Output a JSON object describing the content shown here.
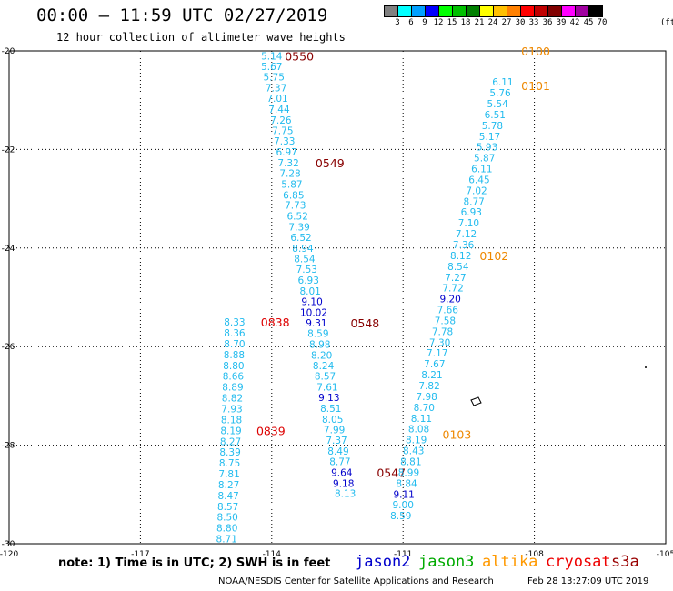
{
  "header": {
    "title": "00:00 – 11:59 UTC 02/27/2019",
    "subtitle": "12 hour collection of altimeter wave heights"
  },
  "legend": {
    "unit": "(ft)",
    "items": [
      {
        "label": "3",
        "color": "#808080"
      },
      {
        "label": "6",
        "color": "#00ffff"
      },
      {
        "label": "9",
        "color": "#00a0ff"
      },
      {
        "label": "12",
        "color": "#0000ff"
      },
      {
        "label": "15",
        "color": "#00ff00"
      },
      {
        "label": "18",
        "color": "#00c000"
      },
      {
        "label": "21",
        "color": "#008000"
      },
      {
        "label": "24",
        "color": "#ffff00"
      },
      {
        "label": "27",
        "color": "#ffc000"
      },
      {
        "label": "30",
        "color": "#ff8000"
      },
      {
        "label": "33",
        "color": "#ff0000"
      },
      {
        "label": "36",
        "color": "#c00000"
      },
      {
        "label": "39",
        "color": "#800000"
      },
      {
        "label": "42",
        "color": "#ff00ff"
      },
      {
        "label": "45",
        "color": "#a000a0"
      },
      {
        "label": "70",
        "color": "#000000"
      }
    ]
  },
  "map": {
    "lon_range": [
      -120,
      -105
    ],
    "lat_range": [
      -30,
      -20
    ],
    "x_ticks": [
      {
        "value": -120,
        "label": "-120"
      },
      {
        "value": -117,
        "label": "-117"
      },
      {
        "value": -114,
        "label": "-114"
      },
      {
        "value": -111,
        "label": "-111"
      },
      {
        "value": -108,
        "label": "-108"
      },
      {
        "value": -105,
        "label": "-105"
      }
    ],
    "y_ticks": [
      {
        "value": -20,
        "label": "-20"
      },
      {
        "value": -22,
        "label": "-22"
      },
      {
        "value": -24,
        "label": "-24"
      },
      {
        "value": -26,
        "label": "-26"
      },
      {
        "value": -28,
        "label": "-28"
      },
      {
        "value": -30,
        "label": "-30"
      }
    ],
    "grid_lons": [
      -117,
      -114,
      -111,
      -108
    ],
    "grid_lats": [
      -22,
      -24,
      -26,
      -28
    ],
    "colors": {
      "cyan": "#22bbee",
      "blue": "#0000cc",
      "red": "#dd0000",
      "darkred": "#880000",
      "orange": "#ee8800"
    },
    "tracks": [
      {
        "id": "track-0550",
        "satellite": "cryosat",
        "time_label": {
          "text": "0550",
          "lon": -113.7,
          "lat": -20.1,
          "color": "darkred"
        },
        "points": [
          {
            "lon": -114.0,
            "lat": -20.1,
            "v": "5.14",
            "c": "cyan"
          },
          {
            "lon": -114.0,
            "lat": -20.31,
            "v": "5.67",
            "c": "cyan"
          },
          {
            "lon": -113.95,
            "lat": -20.53,
            "v": "5.75",
            "c": "cyan"
          },
          {
            "lon": -113.9,
            "lat": -20.75,
            "v": "7.37",
            "c": "cyan"
          },
          {
            "lon": -113.87,
            "lat": -20.96,
            "v": "7.01",
            "c": "cyan"
          },
          {
            "lon": -113.83,
            "lat": -21.18,
            "v": "7.44",
            "c": "cyan"
          },
          {
            "lon": -113.79,
            "lat": -21.4,
            "v": "7.26",
            "c": "cyan"
          },
          {
            "lon": -113.75,
            "lat": -21.61,
            "v": "7.75",
            "c": "cyan"
          },
          {
            "lon": -113.71,
            "lat": -21.83,
            "v": "7.33",
            "c": "cyan"
          },
          {
            "lon": -113.66,
            "lat": -22.05,
            "v": "6.97",
            "c": "cyan"
          },
          {
            "lon": -113.62,
            "lat": -22.27,
            "v": "7.32",
            "c": "cyan"
          },
          {
            "lon": -113.58,
            "lat": -22.48,
            "v": "7.28",
            "c": "cyan"
          },
          {
            "lon": -113.54,
            "lat": -22.7,
            "v": "5.87",
            "c": "cyan"
          },
          {
            "lon": -113.5,
            "lat": -22.92,
            "v": "6.85",
            "c": "cyan"
          },
          {
            "lon": -113.46,
            "lat": -23.13,
            "v": "7.73",
            "c": "cyan"
          },
          {
            "lon": -113.41,
            "lat": -23.35,
            "v": "6.52",
            "c": "cyan"
          },
          {
            "lon": -113.37,
            "lat": -23.57,
            "v": "7.39",
            "c": "cyan"
          },
          {
            "lon": -113.33,
            "lat": -23.78,
            "v": "6.52",
            "c": "cyan"
          },
          {
            "lon": -113.29,
            "lat": -24.0,
            "v": "8.94",
            "c": "cyan"
          },
          {
            "lon": -113.25,
            "lat": -24.22,
            "v": "8.54",
            "c": "cyan"
          },
          {
            "lon": -113.2,
            "lat": -24.43,
            "v": "7.53",
            "c": "cyan"
          },
          {
            "lon": -113.16,
            "lat": -24.65,
            "v": "6.93",
            "c": "cyan"
          },
          {
            "lon": -113.12,
            "lat": -24.87,
            "v": "8.01",
            "c": "cyan"
          },
          {
            "lon": -113.08,
            "lat": -25.08,
            "v": "9.10",
            "c": "blue"
          },
          {
            "lon": -113.04,
            "lat": -25.3,
            "v": "10.02",
            "c": "blue"
          },
          {
            "lon": -112.98,
            "lat": -25.52,
            "v": "9.31",
            "c": "blue"
          },
          {
            "lon": -112.94,
            "lat": -25.73,
            "v": "8.59",
            "c": "cyan"
          },
          {
            "lon": -112.9,
            "lat": -25.95,
            "v": "8.98",
            "c": "cyan"
          },
          {
            "lon": -112.86,
            "lat": -26.17,
            "v": "8.20",
            "c": "cyan"
          },
          {
            "lon": -112.82,
            "lat": -26.38,
            "v": "8.24",
            "c": "cyan"
          },
          {
            "lon": -112.78,
            "lat": -26.6,
            "v": "8.57",
            "c": "cyan"
          },
          {
            "lon": -112.73,
            "lat": -26.82,
            "v": "7.61",
            "c": "cyan"
          },
          {
            "lon": -112.69,
            "lat": -27.03,
            "v": "9.13",
            "c": "blue"
          },
          {
            "lon": -112.65,
            "lat": -27.25,
            "v": "8.51",
            "c": "cyan"
          },
          {
            "lon": -112.61,
            "lat": -27.47,
            "v": "8.05",
            "c": "cyan"
          },
          {
            "lon": -112.57,
            "lat": -27.68,
            "v": "7.99",
            "c": "cyan"
          },
          {
            "lon": -112.52,
            "lat": -27.9,
            "v": "7.37",
            "c": "cyan"
          },
          {
            "lon": -112.48,
            "lat": -28.12,
            "v": "8.49",
            "c": "cyan"
          },
          {
            "lon": -112.44,
            "lat": -28.33,
            "v": "8.77",
            "c": "cyan"
          },
          {
            "lon": -112.4,
            "lat": -28.55,
            "v": "9.64",
            "c": "blue"
          },
          {
            "lon": -112.36,
            "lat": -28.77,
            "v": "9.18",
            "c": "blue"
          },
          {
            "lon": -112.32,
            "lat": -28.98,
            "v": "8.13",
            "c": "cyan"
          }
        ]
      },
      {
        "id": "track-0549",
        "satellite": "cryosat",
        "time_label": {
          "text": "0549",
          "lon": -113.0,
          "lat": -22.27,
          "color": "darkred"
        },
        "points": []
      },
      {
        "id": "track-0548",
        "satellite": "cryosat",
        "time_label": {
          "text": "0548",
          "lon": -112.2,
          "lat": -25.52,
          "color": "darkred"
        },
        "points": []
      },
      {
        "id": "track-0547",
        "satellite": "cryosat",
        "time_label": {
          "text": "0547",
          "lon": -111.6,
          "lat": -28.55,
          "color": "darkred"
        },
        "points": []
      },
      {
        "id": "track-0838",
        "satellite": "cryosat",
        "time_label": {
          "text": "0838",
          "lon": -114.25,
          "lat": -25.5,
          "color": "red"
        },
        "points": [
          {
            "lon": -114.85,
            "lat": -25.5,
            "v": "8.33",
            "c": "cyan"
          },
          {
            "lon": -114.85,
            "lat": -25.72,
            "v": "8.36",
            "c": "cyan"
          },
          {
            "lon": -114.85,
            "lat": -25.94,
            "v": "8.70",
            "c": "cyan"
          },
          {
            "lon": -114.86,
            "lat": -26.16,
            "v": "8.88",
            "c": "cyan"
          },
          {
            "lon": -114.87,
            "lat": -26.38,
            "v": "8.80",
            "c": "cyan"
          },
          {
            "lon": -114.88,
            "lat": -26.6,
            "v": "8.66",
            "c": "cyan"
          },
          {
            "lon": -114.89,
            "lat": -26.82,
            "v": "8.89",
            "c": "cyan"
          },
          {
            "lon": -114.9,
            "lat": -27.04,
            "v": "8.82",
            "c": "cyan"
          },
          {
            "lon": -114.91,
            "lat": -27.26,
            "v": "7.93",
            "c": "cyan"
          },
          {
            "lon": -114.92,
            "lat": -27.48,
            "v": "8.18",
            "c": "cyan"
          },
          {
            "lon": -114.93,
            "lat": -27.7,
            "v": "8.19",
            "c": "cyan"
          },
          {
            "lon": -114.94,
            "lat": -27.92,
            "v": "8.27",
            "c": "cyan"
          },
          {
            "lon": -114.95,
            "lat": -28.14,
            "v": "8.39",
            "c": "cyan"
          },
          {
            "lon": -114.96,
            "lat": -28.36,
            "v": "8.75",
            "c": "cyan"
          },
          {
            "lon": -114.97,
            "lat": -28.58,
            "v": "7.81",
            "c": "cyan"
          },
          {
            "lon": -114.98,
            "lat": -28.8,
            "v": "8.27",
            "c": "cyan"
          },
          {
            "lon": -114.99,
            "lat": -29.02,
            "v": "8.47",
            "c": "cyan"
          },
          {
            "lon": -115.0,
            "lat": -29.24,
            "v": "8.57",
            "c": "cyan"
          },
          {
            "lon": -115.01,
            "lat": -29.46,
            "v": "8.50",
            "c": "cyan"
          },
          {
            "lon": -115.02,
            "lat": -29.68,
            "v": "8.80",
            "c": "cyan"
          },
          {
            "lon": -115.03,
            "lat": -29.9,
            "v": "8.71",
            "c": "cyan"
          }
        ]
      },
      {
        "id": "track-0839",
        "satellite": "cryosat",
        "time_label": {
          "text": "0839",
          "lon": -114.35,
          "lat": -27.7,
          "color": "red"
        },
        "points": []
      },
      {
        "id": "track-ascending",
        "satellite": "altika",
        "time_label": {
          "text": "0100",
          "lon": -108.3,
          "lat": -20.0,
          "color": "orange"
        },
        "points": [
          {
            "lon": -111.05,
            "lat": -29.43,
            "v": "8.59",
            "c": "cyan"
          },
          {
            "lon": -111.0,
            "lat": -29.21,
            "v": "9.00",
            "c": "cyan"
          },
          {
            "lon": -110.98,
            "lat": -28.99,
            "v": "9.11",
            "c": "blue"
          },
          {
            "lon": -110.92,
            "lat": -28.77,
            "v": "8.84",
            "c": "cyan"
          },
          {
            "lon": -110.87,
            "lat": -28.55,
            "v": "8.99",
            "c": "cyan"
          },
          {
            "lon": -110.82,
            "lat": -28.33,
            "v": "8.81",
            "c": "cyan"
          },
          {
            "lon": -110.76,
            "lat": -28.11,
            "v": "8.43",
            "c": "cyan"
          },
          {
            "lon": -110.7,
            "lat": -27.89,
            "v": "8.19",
            "c": "cyan"
          },
          {
            "lon": -110.64,
            "lat": -27.67,
            "v": "8.08",
            "c": "cyan"
          },
          {
            "lon": -110.58,
            "lat": -27.45,
            "v": "8.11",
            "c": "cyan"
          },
          {
            "lon": -110.52,
            "lat": -27.23,
            "v": "8.70",
            "c": "cyan"
          },
          {
            "lon": -110.46,
            "lat": -27.01,
            "v": "7.98",
            "c": "cyan"
          },
          {
            "lon": -110.4,
            "lat": -26.79,
            "v": "7.82",
            "c": "cyan"
          },
          {
            "lon": -110.34,
            "lat": -26.57,
            "v": "8.21",
            "c": "cyan"
          },
          {
            "lon": -110.28,
            "lat": -26.35,
            "v": "7.67",
            "c": "cyan"
          },
          {
            "lon": -110.22,
            "lat": -26.13,
            "v": "7.17",
            "c": "cyan"
          },
          {
            "lon": -110.16,
            "lat": -25.91,
            "v": "7.30",
            "c": "cyan"
          },
          {
            "lon": -110.1,
            "lat": -25.69,
            "v": "7.78",
            "c": "cyan"
          },
          {
            "lon": -110.04,
            "lat": -25.47,
            "v": "7.58",
            "c": "cyan"
          },
          {
            "lon": -109.98,
            "lat": -25.25,
            "v": "7.66",
            "c": "cyan"
          },
          {
            "lon": -109.92,
            "lat": -25.03,
            "v": "9.20",
            "c": "blue"
          },
          {
            "lon": -109.86,
            "lat": -24.81,
            "v": "7.72",
            "c": "cyan"
          },
          {
            "lon": -109.8,
            "lat": -24.59,
            "v": "7.27",
            "c": "cyan"
          },
          {
            "lon": -109.74,
            "lat": -24.37,
            "v": "8.54",
            "c": "cyan"
          },
          {
            "lon": -109.68,
            "lat": -24.15,
            "v": "8.12",
            "c": "cyan"
          },
          {
            "lon": -109.62,
            "lat": -23.93,
            "v": "7.36",
            "c": "cyan"
          },
          {
            "lon": -109.56,
            "lat": -23.71,
            "v": "7.12",
            "c": "cyan"
          },
          {
            "lon": -109.5,
            "lat": -23.49,
            "v": "7.10",
            "c": "cyan"
          },
          {
            "lon": -109.44,
            "lat": -23.27,
            "v": "6.93",
            "c": "cyan"
          },
          {
            "lon": -109.38,
            "lat": -23.05,
            "v": "8.77",
            "c": "cyan"
          },
          {
            "lon": -109.32,
            "lat": -22.83,
            "v": "7.02",
            "c": "cyan"
          },
          {
            "lon": -109.26,
            "lat": -22.61,
            "v": "6.45",
            "c": "cyan"
          },
          {
            "lon": -109.2,
            "lat": -22.39,
            "v": "6.11",
            "c": "cyan"
          },
          {
            "lon": -109.14,
            "lat": -22.17,
            "v": "5.87",
            "c": "cyan"
          },
          {
            "lon": -109.08,
            "lat": -21.95,
            "v": "5.93",
            "c": "cyan"
          },
          {
            "lon": -109.02,
            "lat": -21.73,
            "v": "5.17",
            "c": "cyan"
          },
          {
            "lon": -108.96,
            "lat": -21.51,
            "v": "5.78",
            "c": "cyan"
          },
          {
            "lon": -108.9,
            "lat": -21.29,
            "v": "6.51",
            "c": "cyan"
          },
          {
            "lon": -108.84,
            "lat": -21.07,
            "v": "5.54",
            "c": "cyan"
          },
          {
            "lon": -108.78,
            "lat": -20.85,
            "v": "5.76",
            "c": "cyan"
          },
          {
            "lon": -108.72,
            "lat": -20.63,
            "v": "6.11",
            "c": "cyan"
          }
        ]
      },
      {
        "id": "track-0101",
        "satellite": "altika",
        "time_label": {
          "text": "0101",
          "lon": -108.3,
          "lat": -20.7,
          "color": "orange"
        },
        "points": []
      },
      {
        "id": "track-0102",
        "satellite": "altika",
        "time_label": {
          "text": "0102",
          "lon": -109.25,
          "lat": -24.15,
          "color": "orange"
        },
        "points": []
      },
      {
        "id": "track-0103",
        "satellite": "altika",
        "time_label": {
          "text": "0103",
          "lon": -110.1,
          "lat": -27.78,
          "color": "orange"
        },
        "points": []
      }
    ]
  },
  "footer": {
    "note": "note: 1) Time is in UTC; 2) SWH is in feet",
    "missions": [
      {
        "label": "jason2",
        "color": "#0000cc"
      },
      {
        "label": "jason3",
        "color": "#00aa00"
      },
      {
        "label": "altika",
        "color": "#ff9900"
      },
      {
        "label": "cryosat",
        "color": "#ee0000"
      },
      {
        "label": "s3a",
        "color": "#990000"
      }
    ],
    "credit": "NOAA/NESDIS Center for Satellite Applications and Research",
    "generated": "Feb 28 13:27:09 UTC 2019"
  }
}
